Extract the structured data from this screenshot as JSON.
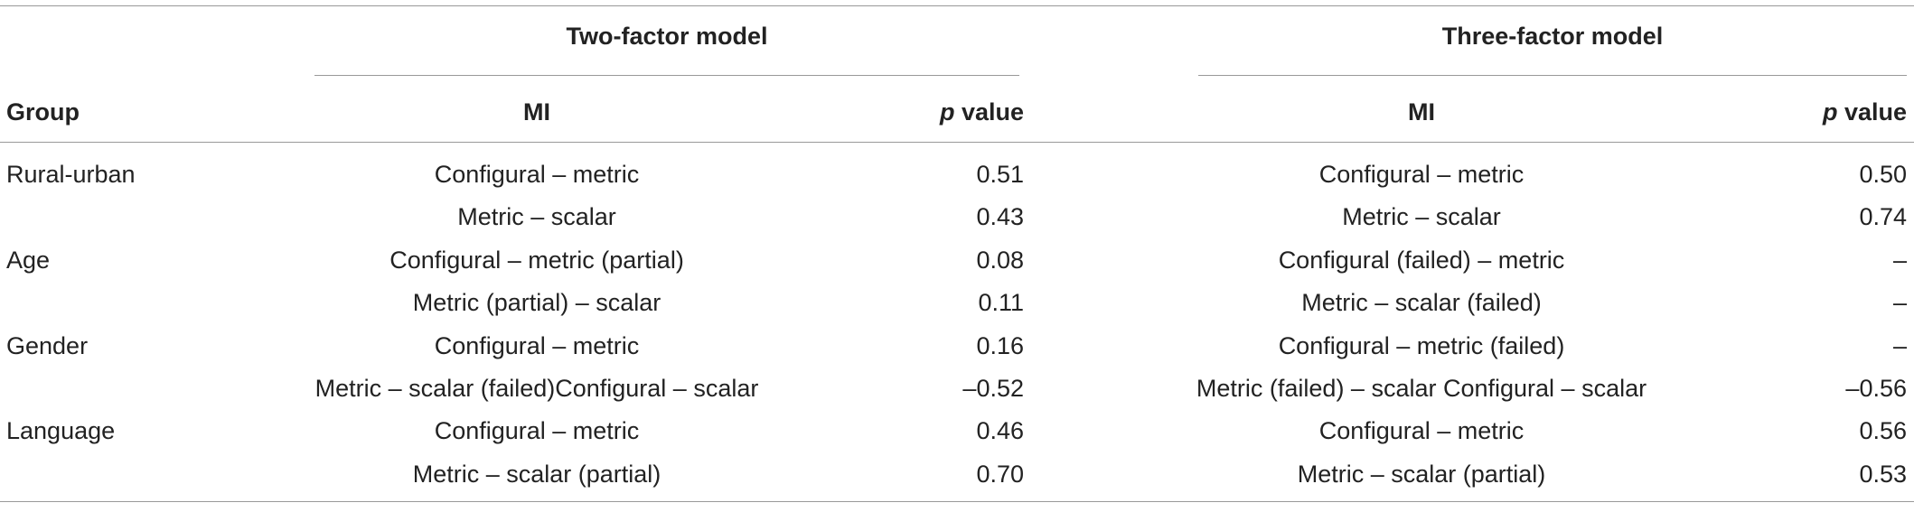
{
  "table": {
    "header": {
      "groups": [
        "Two-factor model",
        "Three-factor model"
      ],
      "columns": [
        "Group",
        "MI",
        "p value",
        "MI",
        "p value"
      ]
    },
    "groups": [
      {
        "name": "Rural-urban",
        "rows": [
          [
            "Configural – metric",
            "0.51",
            "Configural – metric",
            "0.50"
          ],
          [
            "Metric – scalar",
            "0.43",
            "Metric – scalar",
            "0.74"
          ]
        ]
      },
      {
        "name": "Age",
        "rows": [
          [
            "Configural – metric (partial)",
            "0.08",
            "Configural (failed) – metric",
            "–"
          ],
          [
            "Metric (partial) – scalar",
            "0.11",
            "Metric – scalar (failed)",
            "–"
          ]
        ]
      },
      {
        "name": "Gender",
        "rows": [
          [
            "Configural – metric",
            "0.16",
            "Configural – metric (failed)",
            "–"
          ],
          [
            "Metric – scalar (failed)Configural – scalar",
            "–0.52",
            "Metric (failed) – scalar Configural – scalar",
            "–0.56"
          ]
        ]
      },
      {
        "name": "Language",
        "rows": [
          [
            "Configural – metric",
            "0.46",
            "Configural – metric",
            "0.56"
          ],
          [
            "Metric – scalar (partial)",
            "0.70",
            "Metric – scalar (partial)",
            "0.53"
          ]
        ]
      }
    ]
  }
}
